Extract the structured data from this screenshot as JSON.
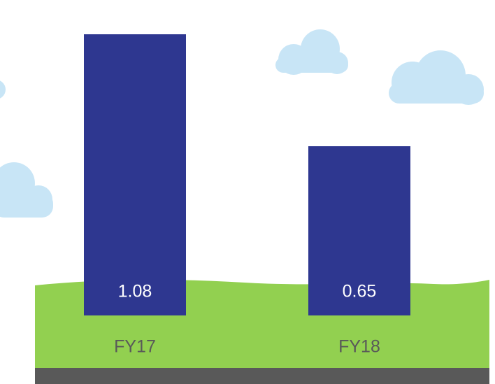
{
  "chart_data": {
    "type": "bar",
    "categories": [
      "FY17",
      "FY18"
    ],
    "values": [
      1.08,
      0.65
    ],
    "color": "#2e3790"
  }
}
